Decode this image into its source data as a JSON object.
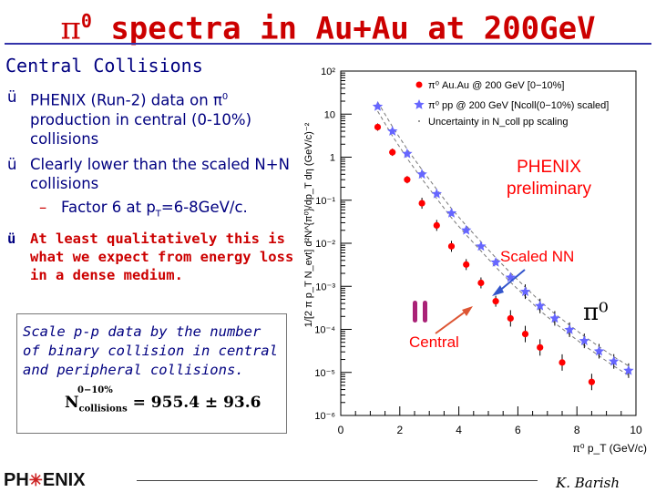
{
  "slide": {
    "title_symbol": "π",
    "title_sup": "0",
    "title_rest": " spectra in Au+Au at 200GeV",
    "subtitle": "Central Collisions",
    "bullets": [
      {
        "tick": "ü",
        "text_a": "PHENIX (Run-2) data on π",
        "sup": "0",
        "text_b": " production in central (0-10%) collisions"
      },
      {
        "tick": "ü",
        "text": "Clearly lower than the scaled N+N collisions"
      },
      {
        "dash": "–",
        "text_a": "Factor 6 at p",
        "sub": "T",
        "text_b": "=6-8GeV/c."
      },
      {
        "tick": "ü",
        "text": "At least qualitatively this is what we expect from energy loss in a dense medium."
      }
    ],
    "box_text": "Scale p-p data by the number of binary collision in central and peripheral collisions.",
    "eq_n": "N",
    "eq_sup": "0−10%",
    "eq_sub": "collisions",
    "eq_value": " = 955.4 ± 93.6",
    "footer_logo_a": "PH",
    "footer_logo_star": "✳",
    "footer_logo_b": "ENIX",
    "footer_author": "K. Barish"
  },
  "chart_data": {
    "type": "scatter",
    "ylabel": "1/[2 π p_T N_evt] d²N^{π⁰}/dp_T dη (GeV/c)⁻²",
    "xlabel": "π⁰ p_T (GeV/c)",
    "xlim": [
      0,
      10
    ],
    "ylim": [
      1e-06,
      100
    ],
    "yscale": "log",
    "x_ticks": [
      "0",
      "2",
      "4",
      "6",
      "8",
      "10"
    ],
    "y_ticks": [
      "10²",
      "10",
      "1",
      "10⁻¹",
      "10⁻²",
      "10⁻³",
      "10⁻⁴",
      "10⁻⁵",
      "10⁻⁶"
    ],
    "legend": [
      "π⁰ Au.Au @ 200 GeV [0−10%]",
      "π⁰ pp @ 200 GeV [Ncoll(0−10%) scaled]",
      "Uncertainty in N_coll pp scaling"
    ],
    "annotations": {
      "preliminary": "PHENIX preliminary",
      "scaled_nn": "Scaled NN",
      "central": "Central",
      "particle": "π⁰"
    },
    "series": [
      {
        "name": "π⁰ Au.Au @ 200 GeV [0−10%]",
        "color": "#ff0000",
        "marker": "circle",
        "x": [
          1.25,
          1.75,
          2.25,
          2.75,
          3.25,
          3.75,
          4.25,
          4.75,
          5.25,
          5.75,
          6.25,
          6.75,
          7.5,
          8.5
        ],
        "y": [
          5,
          1.3,
          0.3,
          0.085,
          0.026,
          0.0085,
          0.0032,
          0.0012,
          0.00045,
          0.00018,
          7.8e-05,
          3.8e-05,
          1.7e-05,
          6e-06
        ]
      },
      {
        "name": "π⁰ pp @ 200 GeV [Ncoll(0−10%) scaled]",
        "color": "#6666ff",
        "marker": "star",
        "x": [
          1.25,
          1.75,
          2.25,
          2.75,
          3.25,
          3.75,
          4.25,
          4.75,
          5.25,
          5.75,
          6.25,
          6.75,
          7.25,
          7.75,
          8.25,
          8.75,
          9.25,
          9.75
        ],
        "y": [
          15,
          4,
          1.2,
          0.4,
          0.14,
          0.05,
          0.02,
          0.0085,
          0.0036,
          0.0016,
          0.00075,
          0.00035,
          0.00018,
          9.8e-05,
          5.4e-05,
          3.1e-05,
          1.8e-05,
          1.1e-05
        ]
      }
    ],
    "colors": {
      "title": "#cc0000",
      "text": "#000080",
      "auau": "#ff0000",
      "pp": "#6666ff",
      "annotation": "#ff0000"
    }
  }
}
